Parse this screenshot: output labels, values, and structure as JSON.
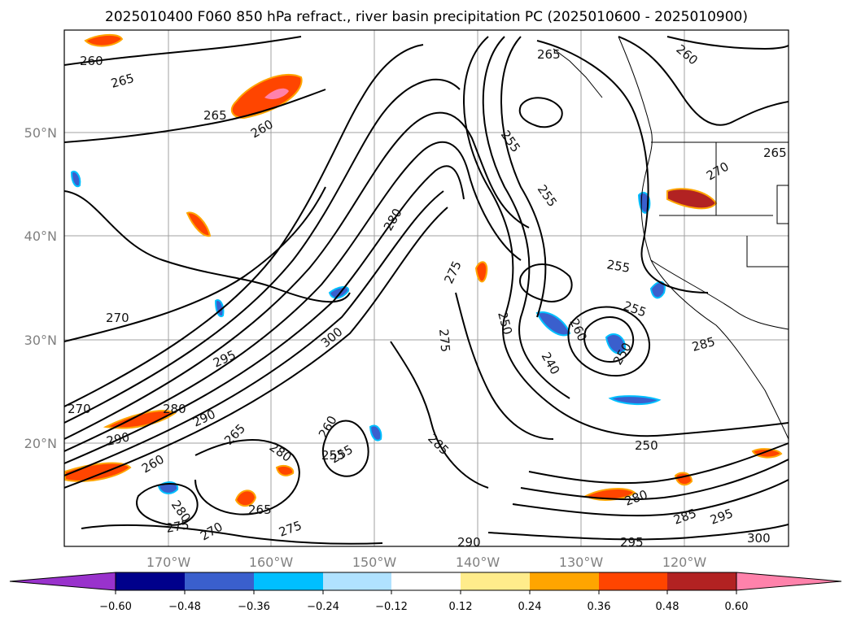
{
  "title": "2025010400 F060 850 hPa refract., river basin precipitation PC (2025010600 - 2025010900)",
  "map": {
    "lat_labels": [
      "50°N",
      "40°N",
      "30°N",
      "20°N"
    ],
    "lon_labels": [
      "170°W",
      "160°W",
      "150°W",
      "140°W",
      "130°W",
      "120°W"
    ],
    "grid": true,
    "contour_labels": [
      "260",
      "265",
      "265",
      "260",
      "265",
      "255",
      "255",
      "260",
      "265",
      "270",
      "280",
      "275",
      "255",
      "270",
      "275",
      "250",
      "255",
      "260",
      "250",
      "240",
      "285",
      "295",
      "300",
      "290",
      "290",
      "270",
      "280",
      "265",
      "255",
      "260",
      "255",
      "285",
      "250",
      "280",
      "285",
      "295",
      "300",
      "290",
      "295",
      "270",
      "265",
      "275",
      "280",
      "260",
      "280",
      "275"
    ],
    "contour_color": "#000000"
  },
  "colorbar": {
    "colors": [
      "#9932CC",
      "#00008B",
      "#3A5FCD",
      "#00BFFF",
      "#B0E2FF",
      "#FFFFFF",
      "#FFEC8B",
      "#FFA500",
      "#FF4500",
      "#B22222",
      "#FF82AB"
    ],
    "tick_labels": [
      "−0.60",
      "−0.48",
      "−0.36",
      "−0.24",
      "−0.12",
      "0.12",
      "0.24",
      "0.36",
      "0.48",
      "0.60"
    ],
    "extend": "both"
  }
}
